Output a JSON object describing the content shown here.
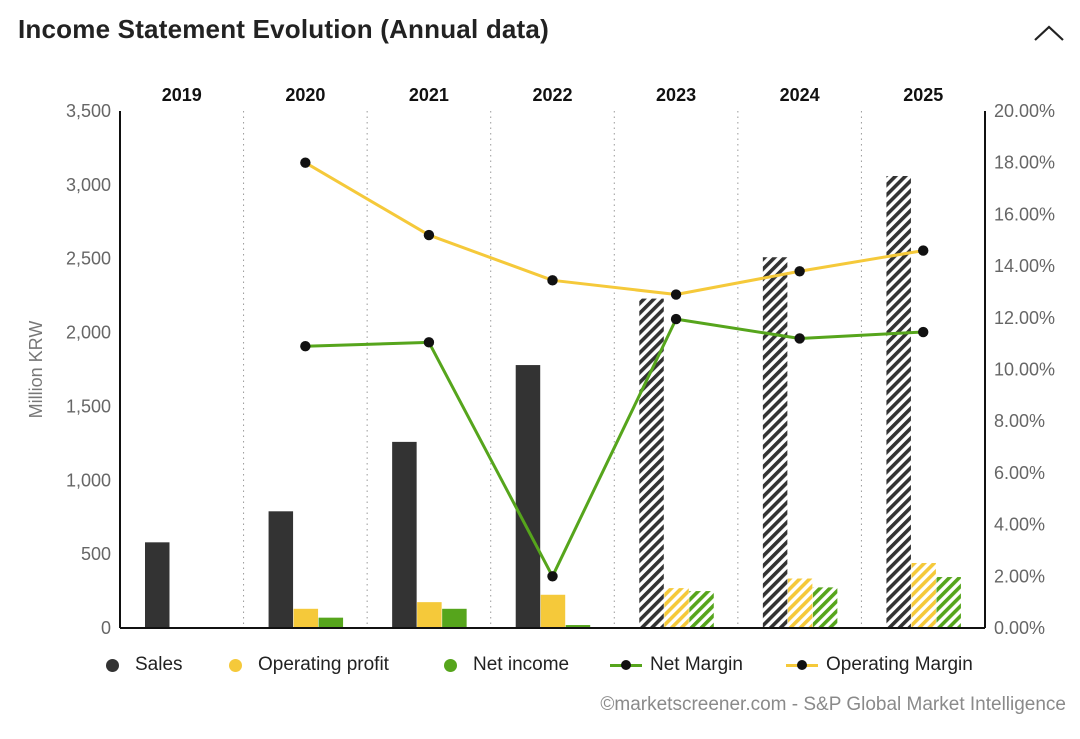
{
  "header": {
    "title": "Income Statement Evolution (Annual data)",
    "collapse_icon": "chevron-up-icon"
  },
  "chart_data": {
    "type": "bar",
    "title": "Income Statement Evolution (Annual data)",
    "categories": [
      "2019",
      "2020",
      "2021",
      "2022",
      "2023",
      "2024",
      "2025"
    ],
    "forecast_from": "2023",
    "ylabel": "Million KRW",
    "ylim": [
      0,
      3500
    ],
    "y_ticks": [
      "0",
      "500",
      "1,000",
      "1,500",
      "2,000",
      "2,500",
      "3,000",
      "3,500"
    ],
    "y2lim": [
      0,
      20
    ],
    "y2_ticks": [
      "0.00%",
      "2.00%",
      "4.00%",
      "6.00%",
      "8.00%",
      "10.00%",
      "12.00%",
      "14.00%",
      "16.00%",
      "18.00%",
      "20.00%"
    ],
    "grid": "vertical dotted separators between years",
    "legend_position": "bottom",
    "bar_series": [
      {
        "name": "Sales",
        "color": "#333333",
        "values": [
          580,
          790,
          1260,
          1780,
          2230,
          2510,
          3060
        ]
      },
      {
        "name": "Operating profit",
        "color": "#f5c93a",
        "values": [
          null,
          130,
          175,
          225,
          270,
          335,
          440
        ]
      },
      {
        "name": "Net income",
        "color": "#56a51c",
        "values": [
          null,
          70,
          130,
          20,
          250,
          275,
          345
        ]
      }
    ],
    "line_series": [
      {
        "name": "Net Margin",
        "color": "#56a51c",
        "axis": "right",
        "values": [
          null,
          10.9,
          11.05,
          2.0,
          11.95,
          11.2,
          11.45
        ]
      },
      {
        "name": "Operating Margin",
        "color": "#f5c93a",
        "axis": "right",
        "values": [
          null,
          18.0,
          15.2,
          13.45,
          12.9,
          13.8,
          14.6
        ]
      }
    ]
  },
  "legend": [
    {
      "label": "Sales",
      "kind": "dot",
      "color": "#333333"
    },
    {
      "label": "Operating profit",
      "kind": "dot",
      "color": "#f5c93a"
    },
    {
      "label": "Net income",
      "kind": "dot",
      "color": "#56a51c"
    },
    {
      "label": "Net Margin",
      "kind": "line",
      "color": "#56a51c"
    },
    {
      "label": "Operating Margin",
      "kind": "line",
      "color": "#f5c93a"
    }
  ],
  "footer": {
    "credit": "©marketscreener.com - S&P Global Market Intelligence"
  }
}
